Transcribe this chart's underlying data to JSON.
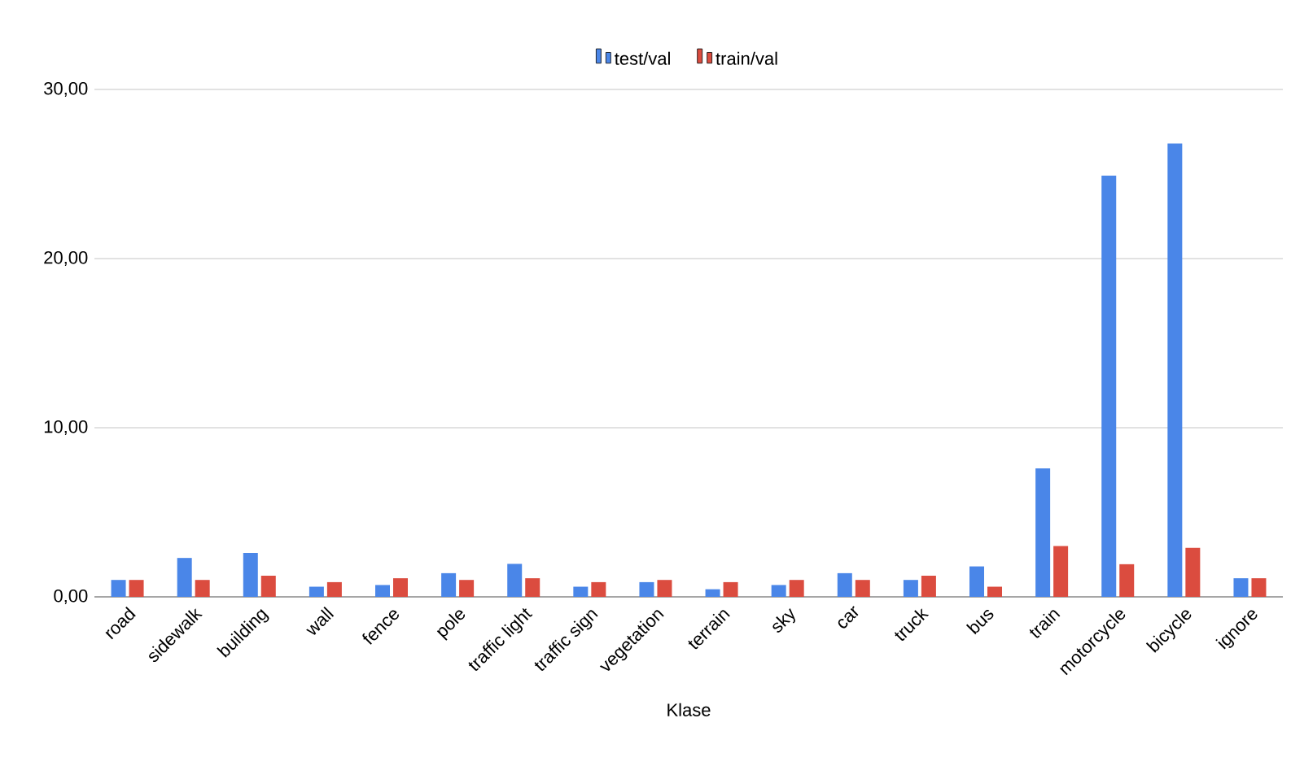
{
  "chart_data": {
    "type": "bar",
    "xlabel": "Klase",
    "categories": [
      "road",
      "sidewalk",
      "building",
      "wall",
      "fence",
      "pole",
      "traffic light",
      "traffic sign",
      "vegetation",
      "terrain",
      "sky",
      "car",
      "truck",
      "bus",
      "train",
      "motorcycle",
      "bicycle",
      "ignore"
    ],
    "series": [
      {
        "name": "test/val",
        "color": "#4a86e8",
        "values": [
          1.0,
          2.3,
          2.6,
          0.6,
          0.7,
          1.4,
          1.95,
          0.6,
          0.87,
          0.45,
          0.7,
          1.4,
          1.0,
          1.8,
          7.6,
          24.9,
          26.8,
          1.1
        ]
      },
      {
        "name": "train/val",
        "color": "#db4c3f",
        "values": [
          1.0,
          1.0,
          1.25,
          0.87,
          1.1,
          1.0,
          1.1,
          0.87,
          1.0,
          0.87,
          1.0,
          1.0,
          1.25,
          0.6,
          3.0,
          1.93,
          2.9,
          1.1
        ]
      }
    ],
    "ylim": [
      0,
      30
    ],
    "yticks": [
      {
        "value": 0,
        "label": "0,00"
      },
      {
        "value": 10,
        "label": "10,00"
      },
      {
        "value": 20,
        "label": "20,00"
      },
      {
        "value": 30,
        "label": "30,00"
      }
    ],
    "grid": "y",
    "legend": "top"
  }
}
